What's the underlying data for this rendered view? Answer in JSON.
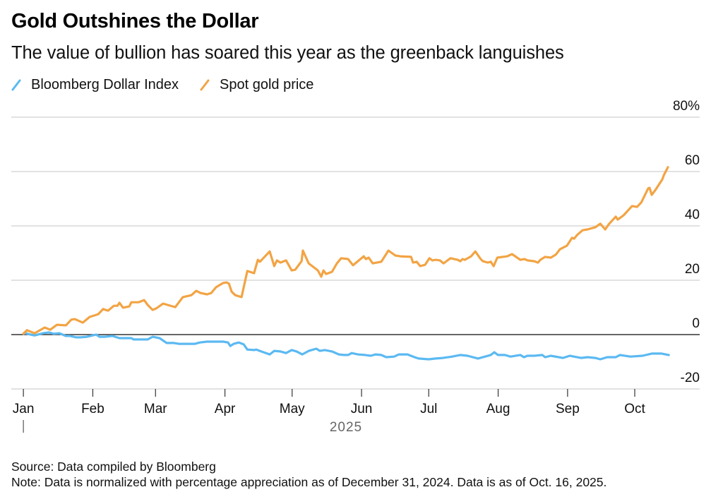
{
  "header": {
    "title": "Gold Outshines the Dollar",
    "subtitle": "The value of bullion has soared this year as the greenback languishes"
  },
  "legend": [
    {
      "label": "Bloomberg Dollar Index",
      "color": "#5bb9f2"
    },
    {
      "label": "Spot gold price",
      "color": "#f2a444"
    }
  ],
  "footer": {
    "source": "Source: Data compiled by Bloomberg",
    "note": "Note: Data is normalized with percentage appreciation as of December 31, 2024. Data is as of Oct. 16, 2025."
  },
  "chart_data": {
    "type": "line",
    "title": "Gold Outshines the Dollar",
    "subtitle": "The value of bullion has soared this year as the greenback languishes",
    "xlabel": "2025",
    "ylabel": "",
    "x_unit": "days since Jan 1, 2025",
    "xlim": [
      -5.4,
      302
    ],
    "ylim": [
      -20,
      80
    ],
    "y_ticks": [
      {
        "value": 80,
        "label": "80%"
      },
      {
        "value": 60,
        "label": "60"
      },
      {
        "value": 40,
        "label": "40"
      },
      {
        "value": 20,
        "label": "20"
      },
      {
        "value": 0,
        "label": "0"
      },
      {
        "value": -20,
        "label": "-20"
      }
    ],
    "x_ticks": [
      {
        "value": 0,
        "label": "Jan"
      },
      {
        "value": 31,
        "label": "Feb"
      },
      {
        "value": 59,
        "label": "Mar"
      },
      {
        "value": 90,
        "label": "Apr"
      },
      {
        "value": 120,
        "label": "May"
      },
      {
        "value": 151,
        "label": "Jun"
      },
      {
        "value": 181,
        "label": "Jul"
      },
      {
        "value": 212,
        "label": "Aug"
      },
      {
        "value": 243,
        "label": "Sep"
      },
      {
        "value": 273,
        "label": "Oct"
      }
    ],
    "year_label": "2025",
    "grid": true,
    "legend_position": "top-left",
    "series": [
      {
        "name": "Bloomberg Dollar Index",
        "color": "#5bb9f2",
        "points": [
          [
            0,
            0.3
          ],
          [
            1,
            0.5
          ],
          [
            3.2,
            0
          ],
          [
            5,
            -0.3
          ],
          [
            8.8,
            0.5
          ],
          [
            11.3,
            0.8
          ],
          [
            13.6,
            0.3
          ],
          [
            16.1,
            0.5
          ],
          [
            18.9,
            -0.5
          ],
          [
            20.8,
            -0.5
          ],
          [
            23.6,
            -1.0
          ],
          [
            25.5,
            -1.0
          ],
          [
            28.4,
            -0.8
          ],
          [
            32.5,
            0
          ],
          [
            34,
            -0.8
          ],
          [
            36.3,
            -0.8
          ],
          [
            39.7,
            -0.5
          ],
          [
            42.9,
            -1.3
          ],
          [
            48.2,
            -1.3
          ],
          [
            49.2,
            -1.8
          ],
          [
            52.3,
            -1.8
          ],
          [
            55.5,
            -1.8
          ],
          [
            57.7,
            -0.8
          ],
          [
            60.8,
            -1.3
          ],
          [
            64,
            -3.1
          ],
          [
            67.2,
            -3.1
          ],
          [
            69.4,
            -3.4
          ],
          [
            73.5,
            -3.4
          ],
          [
            76.6,
            -3.4
          ],
          [
            78.8,
            -2.9
          ],
          [
            82,
            -2.6
          ],
          [
            85.1,
            -2.6
          ],
          [
            89.2,
            -2.6
          ],
          [
            91.4,
            -2.9
          ],
          [
            92.4,
            -4.2
          ],
          [
            93.9,
            -3.4
          ],
          [
            96.2,
            -2.9
          ],
          [
            98.4,
            -3.6
          ],
          [
            100,
            -5.5
          ],
          [
            103.1,
            -5.7
          ],
          [
            104,
            -5.5
          ],
          [
            106.2,
            -6.2
          ],
          [
            110,
            -7.3
          ],
          [
            112,
            -6.0
          ],
          [
            114.8,
            -6.2
          ],
          [
            117.3,
            -6.8
          ],
          [
            119.8,
            -5.7
          ],
          [
            122,
            -6.2
          ],
          [
            124.5,
            -7.3
          ],
          [
            127.4,
            -6.0
          ],
          [
            130.8,
            -5.2
          ],
          [
            132.4,
            -6.0
          ],
          [
            134.6,
            -5.7
          ],
          [
            137.8,
            -6.2
          ],
          [
            140.9,
            -7.3
          ],
          [
            143.1,
            -7.5
          ],
          [
            145,
            -7.5
          ],
          [
            146.6,
            -6.8
          ],
          [
            149.4,
            -7.3
          ],
          [
            152.6,
            -7.5
          ],
          [
            155.1,
            -7.8
          ],
          [
            157.3,
            -7.3
          ],
          [
            159.8,
            -7.5
          ],
          [
            162,
            -8.3
          ],
          [
            165.5,
            -8.1
          ],
          [
            167.7,
            -7.3
          ],
          [
            171.5,
            -7.3
          ],
          [
            174.7,
            -8.3
          ],
          [
            176.5,
            -8.8
          ],
          [
            181,
            -9.1
          ],
          [
            184.1,
            -8.8
          ],
          [
            187.3,
            -8.6
          ],
          [
            191.4,
            -8.1
          ],
          [
            195.1,
            -7.5
          ],
          [
            198.3,
            -7.8
          ],
          [
            203,
            -8.8
          ],
          [
            208.7,
            -7.5
          ],
          [
            210.3,
            -6.5
          ],
          [
            211.9,
            -7.5
          ],
          [
            215,
            -7.5
          ],
          [
            217.5,
            -8.1
          ],
          [
            221.9,
            -7.5
          ],
          [
            223.5,
            -8.3
          ],
          [
            225.1,
            -7.8
          ],
          [
            228.2,
            -7.8
          ],
          [
            231.7,
            -7.5
          ],
          [
            233,
            -8.3
          ],
          [
            235.5,
            -7.8
          ],
          [
            240.9,
            -8.6
          ],
          [
            244,
            -7.8
          ],
          [
            245.9,
            -8.1
          ],
          [
            249,
            -8.6
          ],
          [
            251.9,
            -8.3
          ],
          [
            255.4,
            -8.6
          ],
          [
            257.6,
            -9.1
          ],
          [
            260.7,
            -8.3
          ],
          [
            264.5,
            -8.3
          ],
          [
            266.4,
            -7.5
          ],
          [
            271.1,
            -8.1
          ],
          [
            276.5,
            -7.8
          ],
          [
            280.6,
            -7.0
          ],
          [
            285,
            -7.0
          ],
          [
            288.2,
            -7.5
          ]
        ]
      },
      {
        "name": "Spot gold price",
        "color": "#f2a444",
        "points": [
          [
            0,
            0.3
          ],
          [
            1.6,
            1.6
          ],
          [
            5,
            0.5
          ],
          [
            9.5,
            2.6
          ],
          [
            12,
            1.8
          ],
          [
            15,
            3.6
          ],
          [
            19,
            3.4
          ],
          [
            21.4,
            5.5
          ],
          [
            23,
            5.7
          ],
          [
            26.5,
            4.4
          ],
          [
            29.6,
            6.5
          ],
          [
            33.4,
            7.5
          ],
          [
            35.6,
            9.4
          ],
          [
            37.8,
            8.8
          ],
          [
            40.4,
            10.6
          ],
          [
            42,
            10.6
          ],
          [
            42.9,
            11.7
          ],
          [
            44.5,
            9.9
          ],
          [
            47.3,
            10.4
          ],
          [
            48.2,
            11.9
          ],
          [
            51.4,
            11.9
          ],
          [
            53.9,
            12.7
          ],
          [
            55.5,
            10.9
          ],
          [
            57.7,
            9.1
          ],
          [
            59.3,
            9.6
          ],
          [
            62.4,
            11.4
          ],
          [
            67.8,
            10.1
          ],
          [
            71.2,
            13.8
          ],
          [
            75,
            14.5
          ],
          [
            77.2,
            16.1
          ],
          [
            79.1,
            15.3
          ],
          [
            82,
            14.8
          ],
          [
            83.9,
            15.3
          ],
          [
            86,
            17.4
          ],
          [
            89.2,
            19.0
          ],
          [
            90.8,
            19.2
          ],
          [
            91.8,
            18.7
          ],
          [
            93,
            15.8
          ],
          [
            94.6,
            14.5
          ],
          [
            97.4,
            13.8
          ],
          [
            100,
            23.4
          ],
          [
            103,
            22.6
          ],
          [
            104.7,
            27.5
          ],
          [
            105.6,
            26.8
          ],
          [
            110,
            30.6
          ],
          [
            112,
            25.2
          ],
          [
            113.2,
            27.3
          ],
          [
            114.8,
            26.5
          ],
          [
            117.3,
            27.3
          ],
          [
            119.8,
            23.6
          ],
          [
            121.4,
            23.9
          ],
          [
            124.2,
            27.0
          ],
          [
            124.8,
            30.9
          ],
          [
            127.4,
            26.2
          ],
          [
            131.5,
            23.6
          ],
          [
            133,
            21.3
          ],
          [
            134,
            23.6
          ],
          [
            135.2,
            22.3
          ],
          [
            137.8,
            23.1
          ],
          [
            140,
            26.2
          ],
          [
            141.9,
            28.1
          ],
          [
            145,
            27.8
          ],
          [
            147.2,
            25.5
          ],
          [
            148.2,
            26.2
          ],
          [
            152,
            28.8
          ],
          [
            152.9,
            27.8
          ],
          [
            154.2,
            28.3
          ],
          [
            156,
            26.2
          ],
          [
            159.8,
            26.8
          ],
          [
            163,
            30.9
          ],
          [
            166.1,
            29.1
          ],
          [
            168.3,
            28.8
          ],
          [
            173.1,
            28.6
          ],
          [
            174,
            26.5
          ],
          [
            175.6,
            26.8
          ],
          [
            177.2,
            25.2
          ],
          [
            179.4,
            25.7
          ],
          [
            181.3,
            28.1
          ],
          [
            182.6,
            27.3
          ],
          [
            184.1,
            27.5
          ],
          [
            186,
            27.3
          ],
          [
            187.6,
            26.2
          ],
          [
            190.7,
            28.1
          ],
          [
            193.9,
            27.5
          ],
          [
            195.1,
            27.0
          ],
          [
            196.1,
            27.8
          ],
          [
            197.1,
            27.5
          ],
          [
            199.9,
            28.8
          ],
          [
            201.8,
            30.6
          ],
          [
            204.2,
            27.8
          ],
          [
            205.2,
            27.0
          ],
          [
            207.4,
            26.5
          ],
          [
            208.7,
            26.8
          ],
          [
            210,
            25.2
          ],
          [
            211.6,
            28.3
          ],
          [
            216,
            28.8
          ],
          [
            218.2,
            29.6
          ],
          [
            221.9,
            27.5
          ],
          [
            223.8,
            27.8
          ],
          [
            225.1,
            27.3
          ],
          [
            228.2,
            27.0
          ],
          [
            229.8,
            26.5
          ],
          [
            230.8,
            27.5
          ],
          [
            233,
            28.6
          ],
          [
            235.5,
            28.3
          ],
          [
            237.7,
            29.4
          ],
          [
            239.6,
            31.4
          ],
          [
            242.7,
            32.7
          ],
          [
            244,
            34.3
          ],
          [
            245,
            35.6
          ],
          [
            245.9,
            35.3
          ],
          [
            247.2,
            36.6
          ],
          [
            249.7,
            38.4
          ],
          [
            251.9,
            38.7
          ],
          [
            255.4,
            39.5
          ],
          [
            257.6,
            40.8
          ],
          [
            259.8,
            38.7
          ],
          [
            261.3,
            40.5
          ],
          [
            264.5,
            43.4
          ],
          [
            265.4,
            42.3
          ],
          [
            268,
            43.9
          ],
          [
            271.8,
            47.3
          ],
          [
            274,
            47.0
          ],
          [
            275.9,
            48.6
          ],
          [
            279,
            53.8
          ],
          [
            279.6,
            54.0
          ],
          [
            280.6,
            51.4
          ],
          [
            282.2,
            53.2
          ],
          [
            285.3,
            57.1
          ],
          [
            286,
            58.7
          ],
          [
            287.8,
            61.6
          ]
        ]
      }
    ]
  }
}
